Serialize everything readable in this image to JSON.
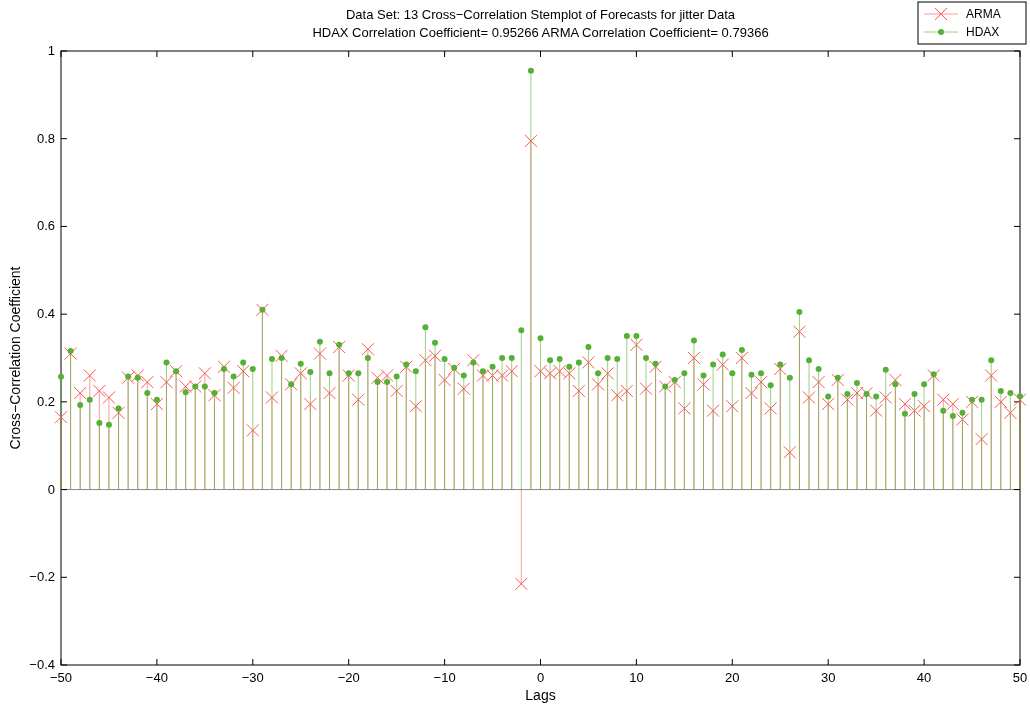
{
  "chart_data": {
    "type": "lollipop",
    "title": "Data Set: 13 Cross−Correlation Stemplot of Forecasts for jitter Data",
    "subtitle": "HDAX Correlation Coefficient= 0.95266 ARMA Correlation Coefficient= 0.79366",
    "xlabel": "Lags",
    "ylabel": "Cross−Correlation Coefficient",
    "x": [
      -50,
      -49,
      -48,
      -47,
      -46,
      -45,
      -44,
      -43,
      -42,
      -41,
      -40,
      -39,
      -38,
      -37,
      -36,
      -35,
      -34,
      -33,
      -32,
      -31,
      -30,
      -29,
      -28,
      -27,
      -26,
      -25,
      -24,
      -23,
      -22,
      -21,
      -20,
      -19,
      -18,
      -17,
      -16,
      -15,
      -14,
      -13,
      -12,
      -11,
      -10,
      -9,
      -8,
      -7,
      -6,
      -5,
      -4,
      -3,
      -2,
      -1,
      0,
      1,
      2,
      3,
      4,
      5,
      6,
      7,
      8,
      9,
      10,
      11,
      12,
      13,
      14,
      15,
      16,
      17,
      18,
      19,
      20,
      21,
      22,
      23,
      24,
      25,
      26,
      27,
      28,
      29,
      30,
      31,
      32,
      33,
      34,
      35,
      36,
      37,
      38,
      39,
      40,
      41,
      42,
      43,
      44,
      45,
      46,
      47,
      48,
      49,
      50
    ],
    "series": [
      {
        "name": "ARMA",
        "color": "#ff5555",
        "marker": "cross",
        "values": [
          0.165,
          0.31,
          0.22,
          0.26,
          0.225,
          0.21,
          0.175,
          0.255,
          0.26,
          0.245,
          0.195,
          0.245,
          0.27,
          0.235,
          0.235,
          0.265,
          0.215,
          0.28,
          0.232,
          0.27,
          0.135,
          0.41,
          0.21,
          0.305,
          0.24,
          0.265,
          0.195,
          0.31,
          0.22,
          0.325,
          0.26,
          0.205,
          0.32,
          0.255,
          0.26,
          0.225,
          0.28,
          0.19,
          0.295,
          0.305,
          0.25,
          0.275,
          0.23,
          0.295,
          0.26,
          0.26,
          0.26,
          0.27,
          -0.215,
          0.795,
          0.27,
          0.265,
          0.27,
          0.265,
          0.225,
          0.29,
          0.24,
          0.265,
          0.215,
          0.225,
          0.33,
          0.23,
          0.28,
          0.235,
          0.245,
          0.185,
          0.3,
          0.24,
          0.18,
          0.285,
          0.19,
          0.3,
          0.22,
          0.245,
          0.185,
          0.275,
          0.085,
          0.36,
          0.21,
          0.245,
          0.195,
          0.25,
          0.205,
          0.22,
          0.22,
          0.18,
          0.21,
          0.25,
          0.195,
          0.18,
          0.19,
          0.26,
          0.205,
          0.195,
          0.16,
          0.2,
          0.115,
          0.26,
          0.2,
          0.175,
          0.205
        ]
      },
      {
        "name": "HDAX",
        "color": "#55b034",
        "marker": "circle",
        "values": [
          0.257,
          0.316,
          0.193,
          0.205,
          0.152,
          0.148,
          0.185,
          0.258,
          0.255,
          0.22,
          0.205,
          0.29,
          0.27,
          0.222,
          0.235,
          0.235,
          0.22,
          0.275,
          0.258,
          0.29,
          0.275,
          0.41,
          0.298,
          0.3,
          0.24,
          0.287,
          0.268,
          0.337,
          0.265,
          0.33,
          0.265,
          0.265,
          0.3,
          0.245,
          0.245,
          0.258,
          0.285,
          0.27,
          0.37,
          0.335,
          0.298,
          0.278,
          0.26,
          0.29,
          0.27,
          0.28,
          0.3,
          0.3,
          0.363,
          0.955,
          0.345,
          0.295,
          0.298,
          0.28,
          0.29,
          0.325,
          0.265,
          0.3,
          0.298,
          0.35,
          0.35,
          0.3,
          0.287,
          0.235,
          0.25,
          0.265,
          0.34,
          0.26,
          0.285,
          0.308,
          0.265,
          0.318,
          0.262,
          0.265,
          0.238,
          0.285,
          0.255,
          0.405,
          0.295,
          0.275,
          0.212,
          0.255,
          0.218,
          0.243,
          0.218,
          0.212,
          0.273,
          0.24,
          0.173,
          0.218,
          0.24,
          0.263,
          0.18,
          0.168,
          0.175,
          0.205,
          0.205,
          0.295,
          0.225,
          0.22,
          0.213
        ]
      }
    ],
    "xlim": [
      -50,
      50
    ],
    "xticks": [
      -50,
      -40,
      -30,
      -20,
      -10,
      0,
      10,
      20,
      30,
      40,
      50
    ],
    "ylim": [
      -0.4,
      1
    ],
    "yticks": [
      -0.4,
      -0.2,
      0,
      0.2,
      0.4,
      0.6,
      0.8,
      1
    ],
    "legend": "top right"
  }
}
